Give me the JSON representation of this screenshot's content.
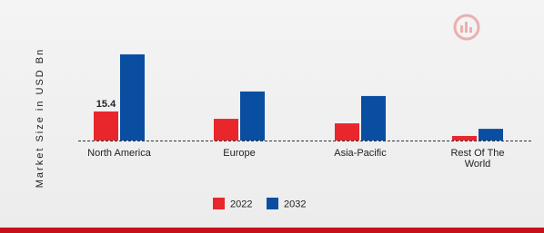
{
  "chart_data": {
    "type": "bar",
    "y_label": "Market Size in USD Bn",
    "categories": [
      "North America",
      "Europe",
      "Asia-Pacific",
      "Rest Of The World"
    ],
    "series": [
      {
        "name": "2022",
        "color": "#e8262b",
        "values": [
          15.4,
          11.5,
          9.1,
          2.4
        ]
      },
      {
        "name": "2032",
        "color": "#0a4ea2",
        "values": [
          45.7,
          26,
          23.6,
          6.2
        ]
      }
    ],
    "labeled_points": [
      [
        0,
        0
      ]
    ],
    "ylim": [
      0,
      50
    ]
  }
}
